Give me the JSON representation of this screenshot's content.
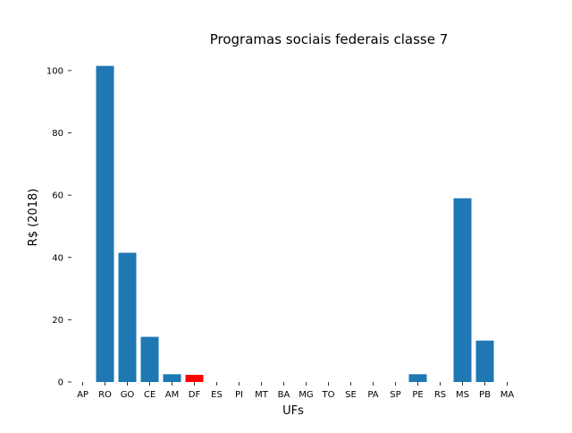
{
  "chart_data": {
    "type": "bar",
    "title": "Programas sociais federais classe 7",
    "xlabel": "UFs",
    "ylabel": "R$ (2018)",
    "categories": [
      "AP",
      "RO",
      "GO",
      "CE",
      "AM",
      "DF",
      "ES",
      "PI",
      "MT",
      "BA",
      "MG",
      "TO",
      "SE",
      "PA",
      "SP",
      "PE",
      "RS",
      "MS",
      "PB",
      "MA"
    ],
    "values": [
      0,
      101.5,
      41.5,
      14.5,
      2.5,
      2.3,
      0,
      0,
      0,
      0,
      0,
      0,
      0,
      0,
      0,
      2.5,
      0,
      59,
      13.3,
      0
    ],
    "highlight_category": "DF",
    "ylim": [
      0,
      106
    ],
    "yticks": [
      0,
      20,
      40,
      60,
      80,
      100
    ],
    "grid": false,
    "colors": {
      "bar": "#1f77b4",
      "highlight": "#ff0000",
      "text": "#000000"
    }
  }
}
